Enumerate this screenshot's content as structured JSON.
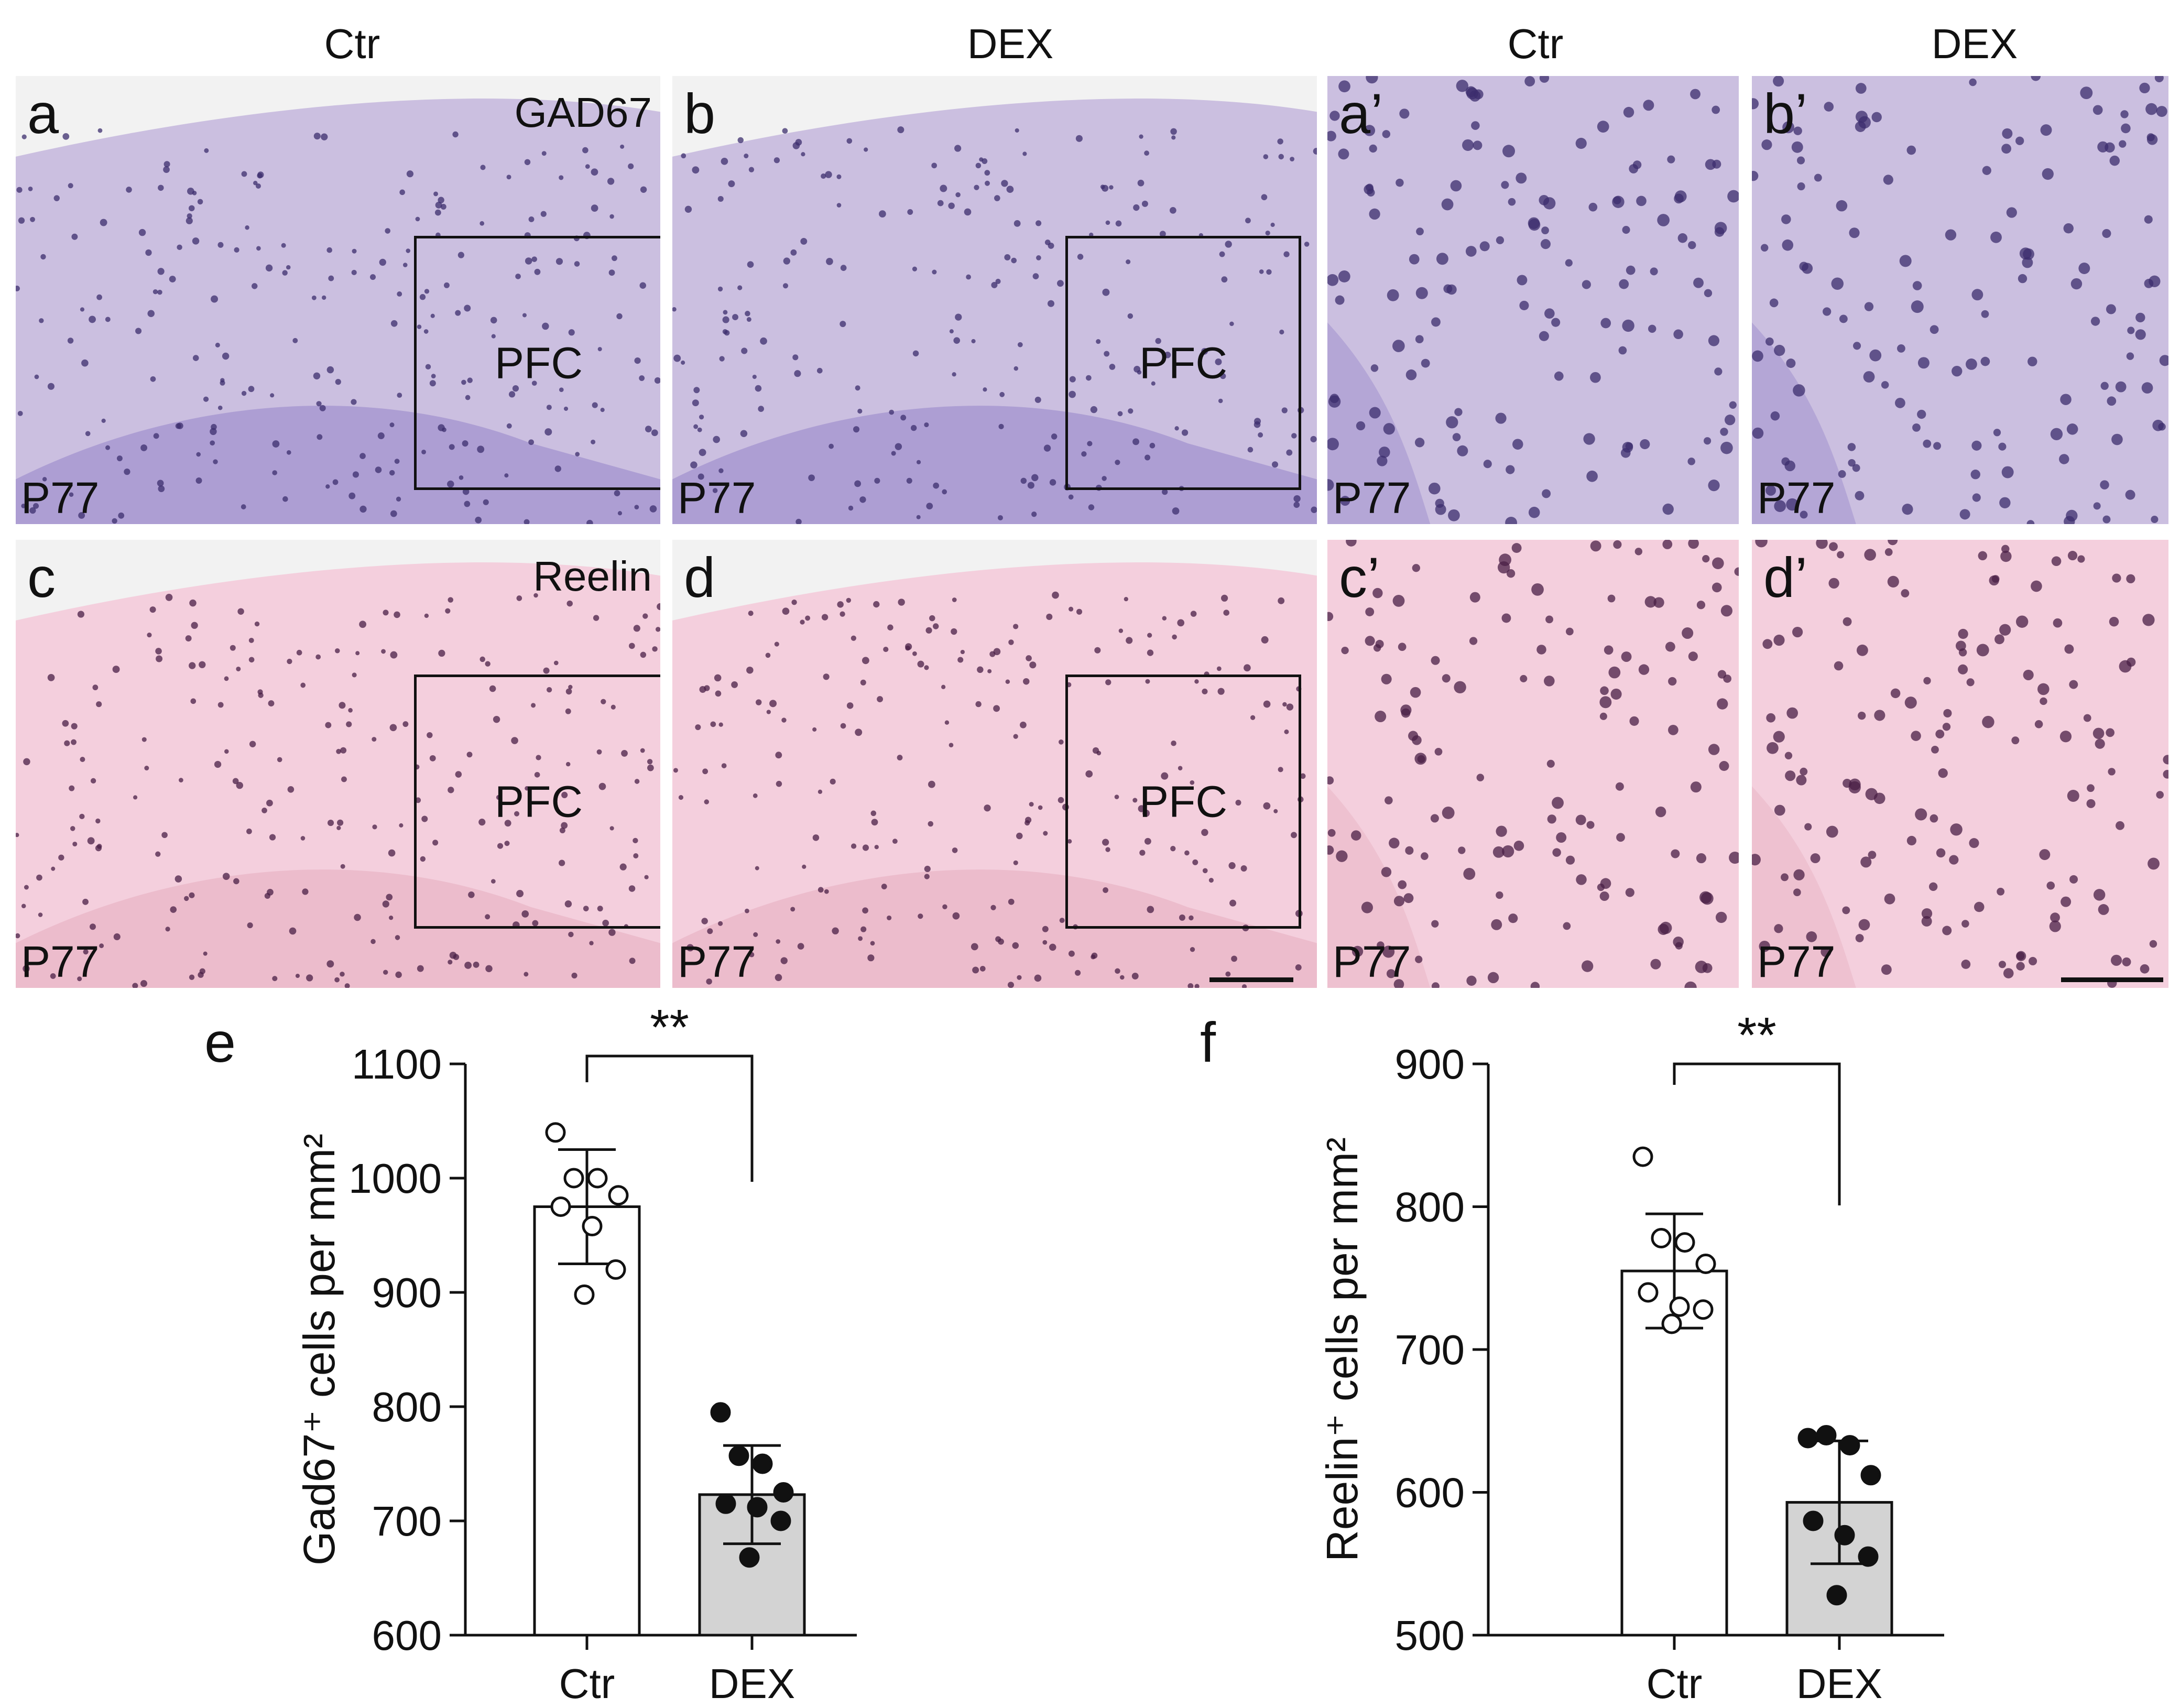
{
  "column_labels": [
    "Ctr",
    "DEX",
    "Ctr",
    "DEX"
  ],
  "panels": [
    {
      "letter": "a",
      "marker": "GAD67",
      "roi": "PFC",
      "age": "P77",
      "stain": "gad"
    },
    {
      "letter": "b",
      "marker": "",
      "roi": "PFC",
      "age": "P77",
      "stain": "gad"
    },
    {
      "letter": "a’",
      "marker": "",
      "roi": "",
      "age": "P77",
      "stain": "gad"
    },
    {
      "letter": "b’",
      "marker": "",
      "roi": "",
      "age": "P77",
      "stain": "gad"
    },
    {
      "letter": "c",
      "marker": "Reelin",
      "roi": "PFC",
      "age": "P77",
      "stain": "reelin"
    },
    {
      "letter": "d",
      "marker": "",
      "roi": "PFC",
      "age": "P77",
      "stain": "reelin"
    },
    {
      "letter": "c’",
      "marker": "",
      "roi": "",
      "age": "P77",
      "stain": "reelin"
    },
    {
      "letter": "d’",
      "marker": "",
      "roi": "",
      "age": "P77",
      "stain": "reelin"
    }
  ],
  "colors": {
    "gad_background": "#cbbfe0",
    "gad_cells": "#3c2d6e",
    "reelin_background": "#f4cfdd",
    "reelin_cells": "#4a1f45",
    "dex_bar": "#d3d3d3",
    "ctr_bar": "#ffffff"
  },
  "chart_data": [
    {
      "type": "bar",
      "panel_letter": "e",
      "categories": [
        "Ctr",
        "DEX"
      ],
      "values": [
        975,
        723
      ],
      "sd": [
        50,
        43
      ],
      "points": [
        [
          1040,
          1000,
          1000,
          985,
          975,
          958,
          920,
          898
        ],
        [
          795,
          757,
          750,
          725,
          715,
          712,
          700,
          668
        ]
      ],
      "point_fill": [
        "open",
        "filled"
      ],
      "ylabel": "Gad67⁺ cells per mm²",
      "ylim": [
        600,
        1100
      ],
      "yticks": [
        600,
        700,
        800,
        900,
        1000,
        1100
      ],
      "significance": "**"
    },
    {
      "type": "bar",
      "panel_letter": "f",
      "categories": [
        "Ctr",
        "DEX"
      ],
      "values": [
        755,
        593
      ],
      "sd": [
        40,
        43
      ],
      "points": [
        [
          835,
          778,
          775,
          760,
          740,
          730,
          728,
          718
        ],
        [
          638,
          640,
          633,
          612,
          580,
          570,
          555,
          528
        ]
      ],
      "point_fill": [
        "open",
        "filled"
      ],
      "ylabel": "Reelin⁺ cells per mm²",
      "ylim": [
        500,
        900
      ],
      "yticks": [
        500,
        600,
        700,
        800,
        900
      ],
      "significance": "**"
    }
  ]
}
